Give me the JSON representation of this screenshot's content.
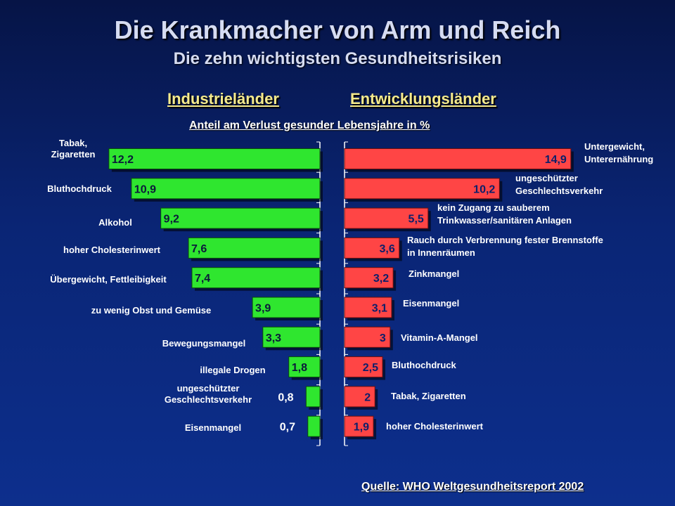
{
  "title": "Die Krankmacher von Arm und Reich",
  "subtitle": "Die zehn wichtigsten Gesundheitsrisiken",
  "colors": {
    "green": "#2fe62f",
    "red": "#ff4545",
    "green_value_text": "#0b1a3a",
    "red_value_text": "#0c1f6b",
    "label_text": "#ffffff",
    "axis": "#ffffff"
  },
  "chart_data": {
    "type": "bar",
    "title": "Die Krankmacher von Arm und Reich",
    "subtitle": "Die zehn wichtigsten Gesundheitsrisiken",
    "value_axis_label": "Anteil am Verlust gesunder Lebensjahre in %",
    "source": "Quelle: WHO Weltgesundheitsreport 2002",
    "series": [
      {
        "name": "Industrieländer",
        "orientation": "bars extend leftward",
        "categories": [
          "Tabak,\nZigaretten",
          "Bluthochdruck",
          "Alkohol",
          "hoher Cholesterinwert",
          "Übergewicht, Fettleibigkeit",
          "zu wenig Obst und Gemüse",
          "Bewegungsmangel",
          "illegale Drogen",
          "ungeschützter\nGeschlechtsverkehr",
          "Eisenmangel"
        ],
        "values": [
          12.2,
          10.9,
          9.2,
          7.6,
          7.4,
          3.9,
          3.3,
          1.8,
          0.8,
          0.7
        ],
        "value_labels": [
          "12,2",
          "10,9",
          "9,2",
          "7,6",
          "7,4",
          "3,9",
          "3,3",
          "1,8",
          "0,8",
          "0,7"
        ]
      },
      {
        "name": "Entwicklungsländer",
        "orientation": "bars extend rightward",
        "categories": [
          "Untergewicht,\nUnterernährung",
          "ungeschützter\nGeschlechtsverkehr",
          "kein Zugang zu sauberem\nTrinkwasser/sanitären Anlagen",
          "Rauch durch Verbrennung fester Brennstoffe\nin Innenräumen",
          "Zinkmangel",
          "Eisenmangel",
          "Vitamin-A-Mangel",
          "Bluthochdruck",
          "Tabak, Zigaretten",
          "hoher Cholesterinwert"
        ],
        "values": [
          14.9,
          10.2,
          5.5,
          3.6,
          3.2,
          3.1,
          3.0,
          2.5,
          2.0,
          1.9
        ],
        "value_labels": [
          "14,9",
          "10,2",
          "5,5",
          "3,6",
          "3,2",
          "3,1",
          "3",
          "2,5",
          "2",
          "1,9"
        ]
      }
    ]
  }
}
